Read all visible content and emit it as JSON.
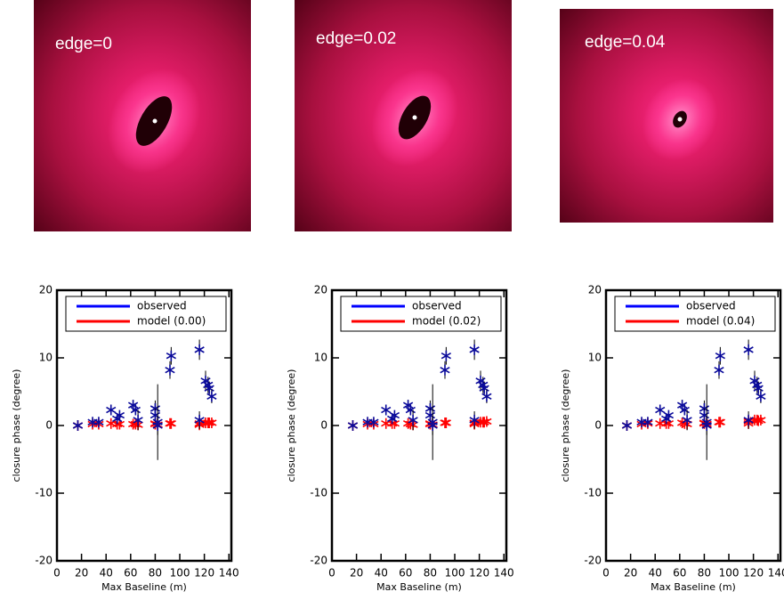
{
  "chart_data": [
    {
      "type": "scatter",
      "image_label": "edge=0",
      "xlabel": "Max Baseline (m)",
      "ylabel": "closure phase (degree)",
      "xlim": [
        0,
        142
      ],
      "ylim": [
        -20,
        20
      ],
      "xticks": [
        0,
        20,
        40,
        60,
        80,
        100,
        120,
        140
      ],
      "yticks": [
        -20,
        -10,
        0,
        10,
        20
      ],
      "series": [
        {
          "name": "observed",
          "color": "#0a0a9a",
          "x": [
            17,
            29,
            34,
            44,
            49,
            51,
            62,
            64,
            66,
            80,
            80,
            82,
            82,
            93,
            92,
            116,
            116,
            121,
            123,
            124,
            126
          ],
          "values": [
            0,
            0.5,
            0.5,
            2.3,
            1.0,
            1.5,
            3.0,
            2.3,
            0.8,
            2.5,
            1.5,
            0.5,
            0,
            10.3,
            8.2,
            11.2,
            0.8,
            6.6,
            6.0,
            5.5,
            4.3
          ],
          "errors": [
            0.3,
            0.3,
            0.3,
            0.4,
            0.6,
            0.5,
            0.8,
            0.6,
            1.5,
            1.2,
            1.0,
            5.6,
            1.4,
            1.3,
            1.3,
            1.5,
            1.3,
            1.5,
            1.2,
            1.0,
            1.0
          ]
        },
        {
          "name": "model (0.00)",
          "color": "#ff0000",
          "x": [
            17,
            29,
            34,
            44,
            49,
            51,
            62,
            64,
            66,
            80,
            80,
            82,
            82,
            93,
            92,
            116,
            116,
            121,
            123,
            124,
            126
          ],
          "values": [
            0,
            0.2,
            0.2,
            0.3,
            0.2,
            0.2,
            0.2,
            0.2,
            0.1,
            0.3,
            0.2,
            0.1,
            0.1,
            0.3,
            0.3,
            0.3,
            0.1,
            0.4,
            0.4,
            0.4,
            0.4
          ]
        }
      ]
    },
    {
      "type": "scatter",
      "image_label": "edge=0.02",
      "xlabel": "Max Baseline (m)",
      "ylabel": "closure phase (degree)",
      "xlim": [
        0,
        142
      ],
      "ylim": [
        -20,
        20
      ],
      "xticks": [
        0,
        20,
        40,
        60,
        80,
        100,
        120,
        140
      ],
      "yticks": [
        -20,
        -10,
        0,
        10,
        20
      ],
      "series": [
        {
          "name": "observed",
          "color": "#0a0a9a",
          "x": [
            17,
            29,
            34,
            44,
            49,
            51,
            62,
            64,
            66,
            80,
            80,
            82,
            82,
            93,
            92,
            116,
            116,
            121,
            123,
            124,
            126
          ],
          "values": [
            0,
            0.5,
            0.5,
            2.3,
            1.0,
            1.5,
            3.0,
            2.3,
            0.8,
            2.5,
            1.5,
            0.5,
            0,
            10.3,
            8.2,
            11.2,
            0.8,
            6.6,
            6.0,
            5.5,
            4.3
          ],
          "errors": [
            0.3,
            0.3,
            0.3,
            0.4,
            0.6,
            0.5,
            0.8,
            0.6,
            1.5,
            1.2,
            1.0,
            5.6,
            1.4,
            1.3,
            1.3,
            1.5,
            1.3,
            1.5,
            1.2,
            1.0,
            1.0
          ]
        },
        {
          "name": "model (0.02)",
          "color": "#ff0000",
          "x": [
            17,
            29,
            34,
            44,
            49,
            51,
            62,
            64,
            66,
            80,
            80,
            82,
            82,
            93,
            92,
            116,
            116,
            121,
            123,
            124,
            126
          ],
          "values": [
            0,
            0.2,
            0.2,
            0.3,
            0.3,
            0.3,
            0.3,
            0.2,
            0.1,
            0.3,
            0.2,
            0.1,
            0.1,
            0.4,
            0.4,
            0.4,
            0.2,
            0.5,
            0.5,
            0.5,
            0.6
          ]
        }
      ]
    },
    {
      "type": "scatter",
      "image_label": "edge=0.04",
      "xlabel": "Max Baseline (m)",
      "ylabel": "closure phase (degree)",
      "xlim": [
        0,
        142
      ],
      "ylim": [
        -20,
        20
      ],
      "xticks": [
        0,
        20,
        40,
        60,
        80,
        100,
        120,
        140
      ],
      "yticks": [
        -20,
        -10,
        0,
        10,
        20
      ],
      "series": [
        {
          "name": "observed",
          "color": "#0a0a9a",
          "x": [
            17,
            29,
            34,
            44,
            49,
            51,
            62,
            64,
            66,
            80,
            80,
            82,
            82,
            93,
            92,
            116,
            116,
            121,
            123,
            124,
            126
          ],
          "values": [
            0,
            0.5,
            0.5,
            2.3,
            1.0,
            1.5,
            3.0,
            2.3,
            0.8,
            2.5,
            1.5,
            0.5,
            0,
            10.3,
            8.2,
            11.2,
            0.8,
            6.6,
            6.0,
            5.5,
            4.3
          ],
          "errors": [
            0.3,
            0.3,
            0.3,
            0.4,
            0.6,
            0.5,
            0.8,
            0.6,
            1.5,
            1.2,
            1.0,
            5.6,
            1.4,
            1.3,
            1.3,
            1.5,
            1.3,
            1.5,
            1.2,
            1.0,
            1.0
          ]
        },
        {
          "name": "model (0.04)",
          "color": "#ff0000",
          "x": [
            17,
            29,
            34,
            44,
            49,
            51,
            62,
            64,
            66,
            80,
            80,
            82,
            82,
            93,
            92,
            116,
            116,
            121,
            123,
            124,
            126
          ],
          "values": [
            0,
            0.2,
            0.3,
            0.3,
            0.3,
            0.3,
            0.4,
            0.3,
            0.2,
            0.4,
            0.3,
            0.2,
            0.2,
            0.5,
            0.5,
            0.6,
            0.3,
            0.8,
            0.8,
            0.7,
            0.8
          ]
        }
      ]
    }
  ]
}
